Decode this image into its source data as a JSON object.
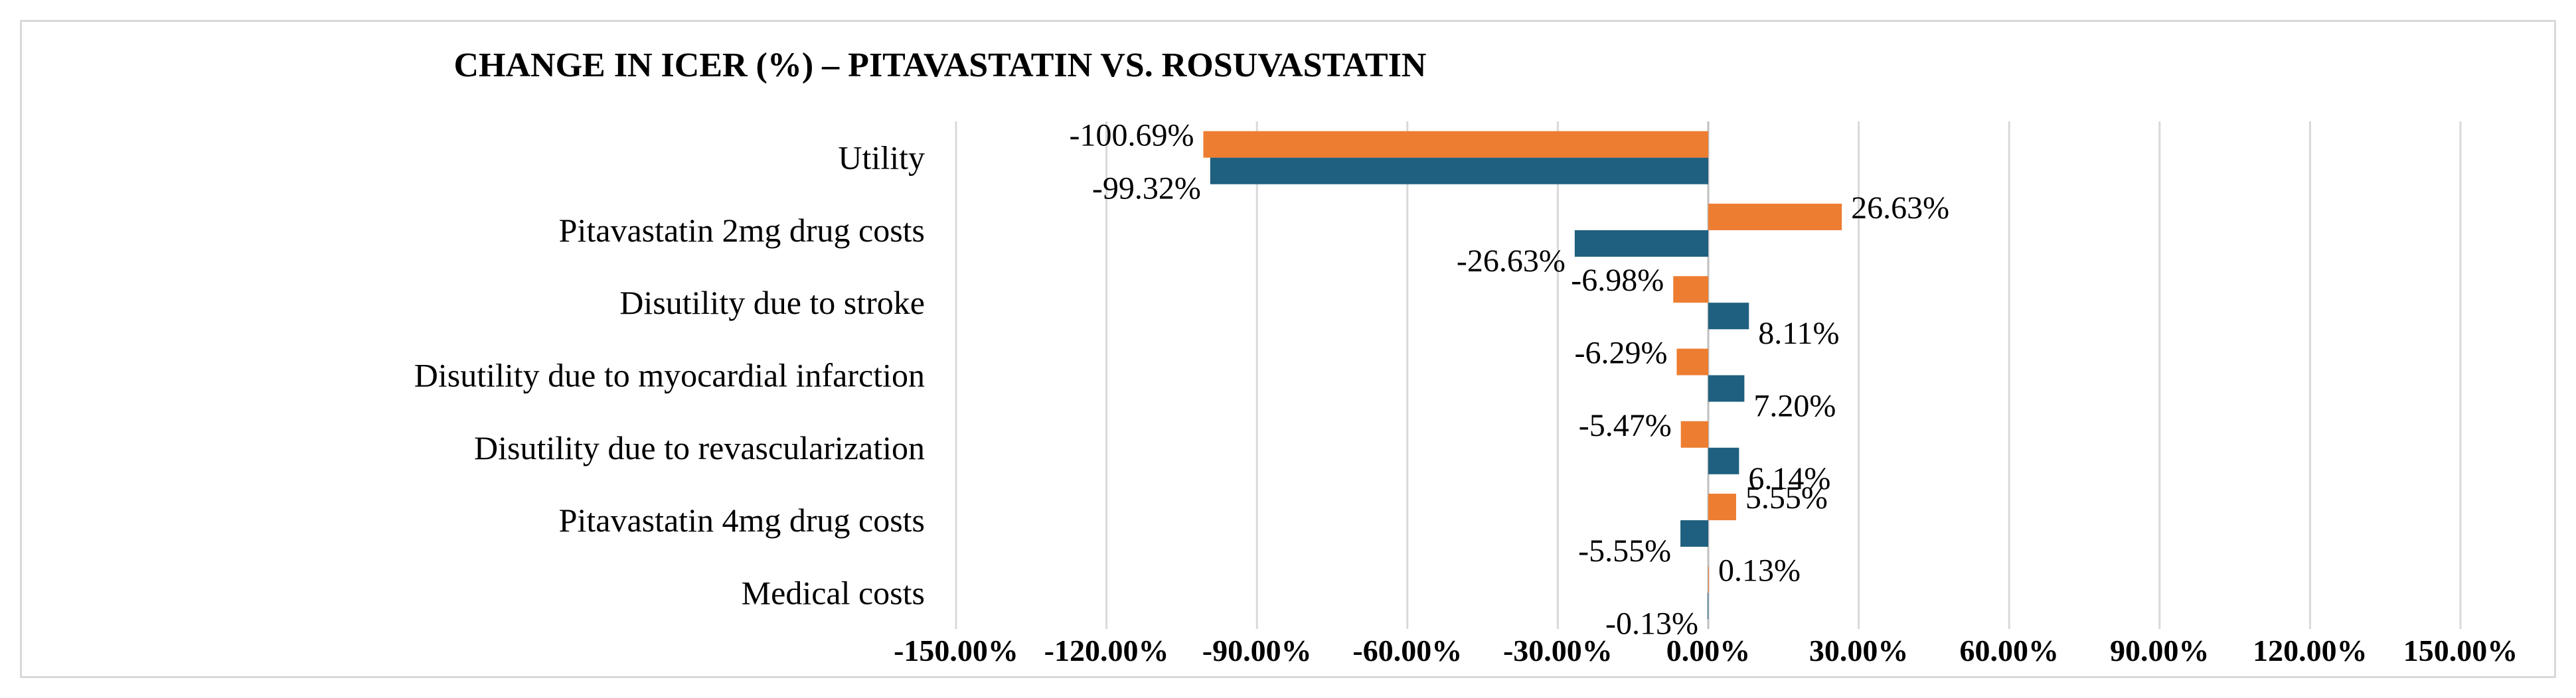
{
  "chart_data": {
    "type": "bar",
    "orientation": "horizontal",
    "title": "CHANGE IN ICER (%) – PITAVASTATIN VS. ROSUVASTATIN",
    "xlabel": "",
    "ylabel": "",
    "xlim": [
      -150,
      150
    ],
    "x_ticks": [
      -150,
      -120,
      -90,
      -60,
      -30,
      0,
      30,
      60,
      90,
      120,
      150
    ],
    "x_tick_labels": [
      "-150.00%",
      "-120.00%",
      "-90.00%",
      "-60.00%",
      "-30.00%",
      "0.00%",
      "30.00%",
      "60.00%",
      "90.00%",
      "120.00%",
      "150.00%"
    ],
    "grid": true,
    "legend": "none",
    "categories": [
      "Utility",
      "Pitavastatin 2mg drug costs",
      "Disutility due to stroke",
      "Disutility due to myocardial infarction",
      "Disutility due to revascularization",
      "Pitavastatin 4mg drug costs",
      "Medical costs"
    ],
    "series": [
      {
        "name": "series-orange",
        "color": "#ED7D31",
        "values": [
          -100.69,
          26.63,
          -6.98,
          -6.29,
          -5.47,
          5.55,
          0.13
        ],
        "labels": [
          "-100.69%",
          "26.63%",
          "-6.98%",
          "-6.29%",
          "-5.47%",
          "5.55%",
          "0.13%"
        ]
      },
      {
        "name": "series-blue",
        "color": "#1F5F7F",
        "values": [
          -99.32,
          -26.63,
          8.11,
          7.2,
          6.14,
          -5.55,
          -0.13
        ],
        "labels": [
          "-99.32%",
          "-26.63%",
          "8.11%",
          "7.20%",
          "6.14%",
          "-5.55%",
          "-0.13%"
        ]
      }
    ]
  }
}
